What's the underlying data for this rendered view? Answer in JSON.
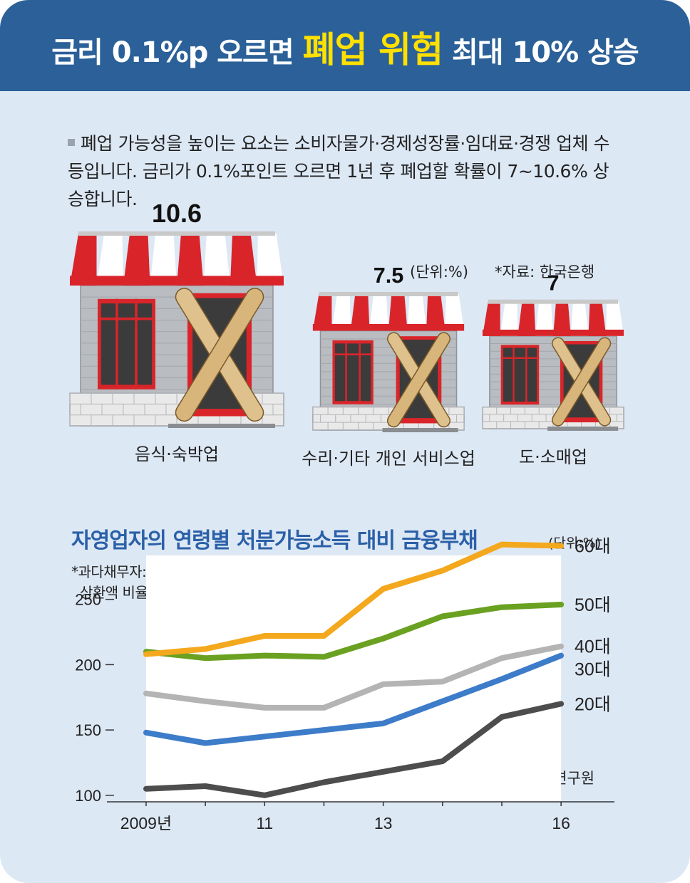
{
  "header": {
    "title_pre": "금리 0.1%p 오르면 ",
    "title_highlight": "폐업 위험",
    "title_post": " 최대 10% 상승"
  },
  "intro": {
    "text": "폐업 가능성을 높이는 요소는 소비자물가·경제성장률·임대료·경쟁 업체 수 등입니다. 금리가 0.1%포인트 오르면 1년 후 폐업할 확률이 7~10.6% 상승합니다."
  },
  "top_chart": {
    "unit": "(단위:%)",
    "source": "*자료: 한국은행"
  },
  "bottom_chart": {
    "title": "자영업자의 연령별 처분가능소득 대비 금융부채",
    "unit": "(단위:%)",
    "note_line1": "*과다채무자: 처분 가능한 소득 대비 부채 원리금",
    "note_line2": "상환액 비율이 60% 이상인 경우",
    "source": "*자료: 한국금융연구원"
  },
  "colors": {
    "header": "#2b6098",
    "background": "#dde8f5",
    "highlight": "#ffe000",
    "awning_red": "#d9252a",
    "age60": "#f4a81d",
    "age50": "#6aa121",
    "age40": "#b4b4b4",
    "age30": "#3d7cc9",
    "age20": "#4d4d4d"
  },
  "chart_data": [
    {
      "type": "bar",
      "title": "",
      "unit": "%",
      "categories": [
        "음식·숙박업",
        "수리·기타 개인 서비스업",
        "도·소매업"
      ],
      "values": [
        10.6,
        7.5,
        7
      ],
      "value_labels": [
        "10.6",
        "7.5",
        "7"
      ]
    },
    {
      "type": "line",
      "title": "자영업자의 연령별 처분가능소득 대비 금융부채",
      "x": [
        2009,
        2010,
        2011,
        2012,
        2013,
        2014,
        2015,
        2016
      ],
      "x_tick_labels": [
        {
          "x": 2009,
          "label": "2009년"
        },
        {
          "x": 2011,
          "label": "11"
        },
        {
          "x": 2013,
          "label": "13"
        },
        {
          "x": 2016,
          "label": "16"
        }
      ],
      "y_ticks": [
        100,
        150,
        200,
        250
      ],
      "ylim": [
        95,
        270
      ],
      "xlim": [
        2008.7,
        2016.9
      ],
      "grid": false,
      "series": [
        {
          "name": "60대",
          "color_key": "age60",
          "values": [
            208,
            212,
            222,
            222,
            258,
            272,
            292,
            291
          ]
        },
        {
          "name": "50대",
          "color_key": "age50",
          "values": [
            210,
            205,
            207,
            206,
            220,
            237,
            244,
            246
          ]
        },
        {
          "name": "40대",
          "color_key": "age40",
          "values": [
            178,
            172,
            167,
            167,
            185,
            187,
            205,
            214
          ]
        },
        {
          "name": "30대",
          "color_key": "age30",
          "values": [
            148,
            140,
            145,
            150,
            155,
            172,
            189,
            207
          ]
        },
        {
          "name": "20대",
          "color_key": "age20",
          "values": [
            105,
            107,
            100,
            110,
            118,
            126,
            160,
            170
          ]
        }
      ]
    }
  ]
}
